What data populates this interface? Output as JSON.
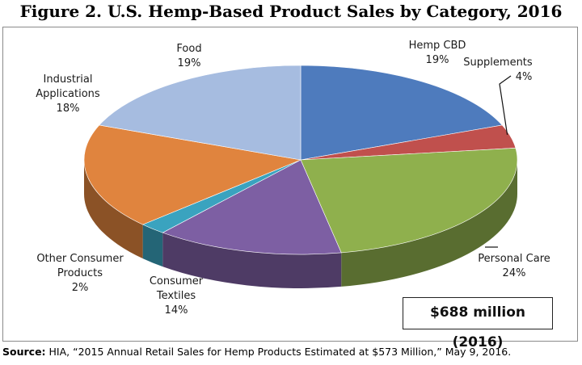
{
  "title": "Figure 2. U.S. Hemp-Based Product Sales by Category, 2016",
  "total_label": "$688 million (2016)",
  "source": {
    "prefix": "Source:",
    "text": " HIA, “2015 Annual Retail Sales for Hemp Products Estimated at $573 Million,” May 9, 2016."
  },
  "chart_data": {
    "type": "pie",
    "title": "Figure 2. U.S. Hemp-Based Product Sales by Category, 2016",
    "slices": [
      {
        "label": "Hemp CBD",
        "value": 19,
        "value_label": "19%",
        "color": "#4e7bbd"
      },
      {
        "label": "Supplements",
        "value": 4,
        "value_label": "4%",
        "color": "#c0504d"
      },
      {
        "label": "Personal Care",
        "value": 24,
        "value_label": "24%",
        "color": "#8fb04d"
      },
      {
        "label": "Consumer Textiles",
        "value": 14,
        "value_label": "14%",
        "color": "#7d5fa3"
      },
      {
        "label": "Other Consumer Products",
        "value": 2,
        "value_label": "2%",
        "color": "#3aa3bf"
      },
      {
        "label": "Industrial Applications",
        "value": 18,
        "value_label": "18%",
        "color": "#e0843e"
      },
      {
        "label": "Food",
        "value": 19,
        "value_label": "19%",
        "color": "#a6bce0"
      }
    ]
  }
}
